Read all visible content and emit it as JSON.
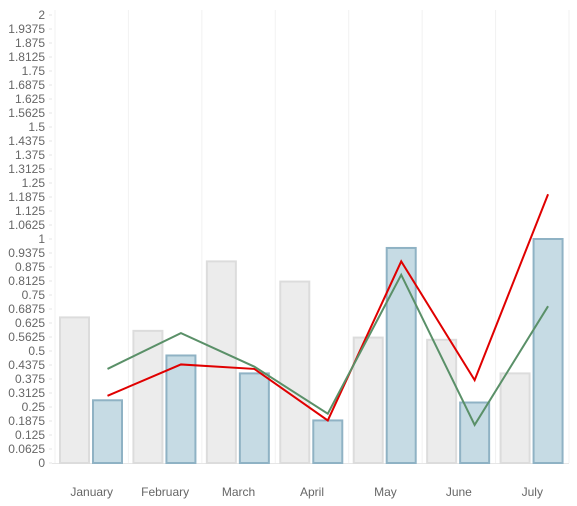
{
  "chart_data": {
    "type": "bar",
    "categories": [
      "January",
      "February",
      "March",
      "April",
      "May",
      "June",
      "July"
    ],
    "ylim": [
      0,
      2
    ],
    "ytick_step": 0.0625,
    "yticks": [
      "0",
      "0.0625",
      "0.125",
      "0.1875",
      "0.25",
      "0.3125",
      "0.375",
      "0.4375",
      "0.5",
      "0.5625",
      "0.625",
      "0.6875",
      "0.75",
      "0.8125",
      "0.875",
      "0.9375",
      "1",
      "1.0625",
      "1.125",
      "1.1875",
      "1.25",
      "1.3125",
      "1.375",
      "1.4375",
      "1.5",
      "1.5625",
      "1.625",
      "1.6875",
      "1.75",
      "1.8125",
      "1.875",
      "1.9375",
      "2"
    ],
    "grid": {
      "vertical": true,
      "horizontal": false
    },
    "legend": "none",
    "title": "",
    "xlabel": "",
    "ylabel": "",
    "bar_series": [
      {
        "values": [
          0.65,
          0.59,
          0.9,
          0.81,
          0.56,
          0.55,
          0.4
        ],
        "fill": "#ececec",
        "stroke": "#dcdcdc"
      },
      {
        "values": [
          0.28,
          0.48,
          0.4,
          0.19,
          0.96,
          0.27,
          1.0
        ],
        "fill": "#c6dbe4",
        "stroke": "#8fb2c4"
      }
    ],
    "line_series": [
      {
        "values": [
          0.3,
          0.44,
          0.42,
          0.19,
          0.9,
          0.37,
          1.2
        ],
        "color": "#e00000"
      },
      {
        "values": [
          0.42,
          0.58,
          0.43,
          0.22,
          0.84,
          0.17,
          0.7
        ],
        "color": "#5a9068"
      }
    ]
  }
}
